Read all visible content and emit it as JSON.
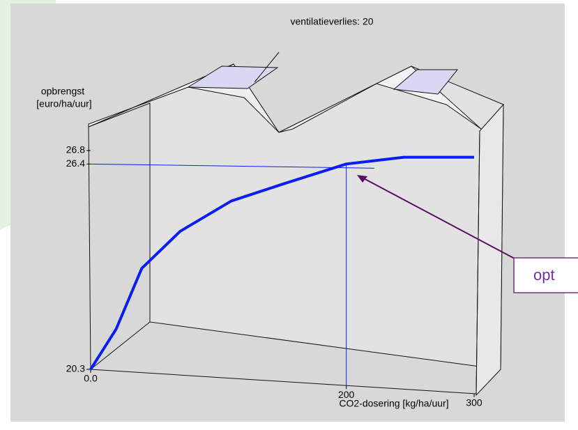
{
  "chart_data": {
    "type": "line",
    "title": "ventilatieverlies: 20",
    "ylabel": [
      "opbrengst",
      "[euro/ha/uur]"
    ],
    "xlabel": "CO2-dosering [kg/ha/uur]",
    "x": [
      0,
      20,
      40,
      70,
      110,
      150,
      200,
      245,
      300
    ],
    "values": [
      20.3,
      21.5,
      23.3,
      24.4,
      25.3,
      25.8,
      26.4,
      26.6,
      26.6
    ],
    "color": "#0a1ef0",
    "xlim": [
      0,
      300
    ],
    "ylim": [
      20.3,
      26.8
    ],
    "xticks": [
      {
        "value": 0,
        "label": "0.0"
      },
      200,
      300
    ],
    "yticks": [
      20.3,
      26.4,
      26.8
    ],
    "annotation": "opt"
  }
}
